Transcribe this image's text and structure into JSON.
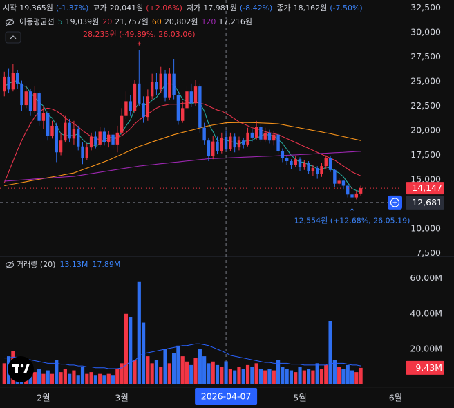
{
  "chart_data": {
    "type": "candlestick",
    "ohlc_legend": [
      {
        "label": "시작",
        "value": "19,365원",
        "change": "(-1.37%)",
        "color": "#3b82f6"
      },
      {
        "label": "고가",
        "value": "20,041원",
        "change": "(+2.06%)",
        "color": "#f23645"
      },
      {
        "label": "저가",
        "value": "17,981원",
        "change": "(-8.42%)",
        "color": "#3b82f6"
      },
      {
        "label": "종가",
        "value": "18,162원",
        "change": "(-7.50%)",
        "color": "#3b82f6"
      }
    ],
    "ma_title": "이동평균선",
    "up_color": "#f23645",
    "down_color": "#2f6ff0",
    "xlim": [
      -1,
      92
    ],
    "xticks": [
      {
        "value": 9,
        "label": "2월"
      },
      {
        "value": 27,
        "label": "3월"
      },
      {
        "value": 68,
        "label": "5월"
      },
      {
        "value": 90,
        "label": "6월"
      }
    ],
    "ylim": [
      7500,
      32500
    ],
    "yticks": [
      {
        "value": 7500,
        "label": "7,500"
      },
      {
        "value": 10000,
        "label": "10,000"
      },
      {
        "value": 15000,
        "label": "15,000"
      },
      {
        "value": 17500,
        "label": "17,500"
      },
      {
        "value": 20000,
        "label": "20,000"
      },
      {
        "value": 22500,
        "label": "22,500"
      },
      {
        "value": 25000,
        "label": "25,000"
      },
      {
        "value": 27500,
        "label": "27,500"
      },
      {
        "value": 30000,
        "label": "30,000"
      },
      {
        "value": 32500,
        "label": "32,500"
      }
    ],
    "y2lim": [
      0,
      72
    ],
    "y2ticks": [
      {
        "value": 20,
        "label": "20.00M"
      },
      {
        "value": 40,
        "label": "40.00M"
      },
      {
        "value": 60,
        "label": "60.00M"
      }
    ],
    "grid": false,
    "open": [
      24000,
      25500,
      24200,
      25900,
      24800,
      22600,
      24000,
      22000,
      23800,
      21000,
      21800,
      19500,
      20500,
      17800,
      19000,
      20800,
      19200,
      20200,
      18400,
      17200,
      18300,
      19400,
      18600,
      19900,
      18800,
      19600,
      18600,
      19800,
      21500,
      23000,
      22000,
      24800,
      22800,
      21400,
      23500,
      25000,
      24200,
      25800,
      23400,
      25800,
      23600,
      21000,
      22300,
      24000,
      22800,
      24500,
      20300,
      19000,
      17400,
      18900,
      17900,
      19365,
      18162,
      19400,
      18300,
      19000,
      18600,
      19800,
      19300,
      20400,
      19100,
      19800,
      19000,
      19600,
      17900,
      17200,
      16900,
      16500,
      17100,
      16300,
      16700,
      15900,
      16200,
      15600,
      16400,
      17200,
      16000,
      14600,
      14900,
      14400,
      13500,
      13200,
      13600
    ],
    "high": [
      26000,
      26300,
      26800,
      26200,
      25100,
      24600,
      24300,
      24500,
      24000,
      22500,
      22000,
      21000,
      20800,
      19800,
      21500,
      21200,
      21000,
      20500,
      18800,
      18700,
      19800,
      19900,
      20400,
      20300,
      20000,
      19900,
      20500,
      22300,
      24000,
      23600,
      25200,
      28235,
      23500,
      24200,
      25800,
      25900,
      26500,
      26200,
      26400,
      27300,
      24000,
      23000,
      24600,
      24800,
      25200,
      24800,
      20800,
      19300,
      19500,
      19400,
      19800,
      20041,
      19800,
      19700,
      19400,
      19300,
      20300,
      20200,
      21000,
      20700,
      20300,
      20100,
      20000,
      19800,
      18200,
      17500,
      17100,
      17400,
      17300,
      17000,
      16900,
      16500,
      16400,
      16700,
      17500,
      17400,
      16100,
      15200,
      15000,
      14500,
      13800,
      13900,
      14400
    ],
    "low": [
      23500,
      23800,
      24000,
      24300,
      22000,
      22300,
      21500,
      21800,
      20500,
      20200,
      19000,
      19200,
      16800,
      17500,
      18800,
      18800,
      18600,
      18000,
      16600,
      17000,
      18000,
      18200,
      18400,
      18500,
      18300,
      18200,
      17800,
      19600,
      21200,
      21500,
      21800,
      22500,
      20800,
      21000,
      23200,
      23600,
      23800,
      23000,
      23100,
      23200,
      20600,
      20800,
      22000,
      22400,
      22500,
      19800,
      18600,
      16900,
      17100,
      17600,
      17700,
      17981,
      17900,
      17800,
      18000,
      18200,
      18400,
      18900,
      19100,
      18800,
      18900,
      18700,
      18500,
      17600,
      16800,
      16500,
      16100,
      16300,
      15900,
      16000,
      15600,
      15400,
      15100,
      15300,
      16100,
      15800,
      14300,
      14400,
      14000,
      13200,
      12554,
      13000,
      13400
    ],
    "close": [
      25500,
      24200,
      25900,
      24800,
      22600,
      24000,
      22000,
      23800,
      21000,
      21800,
      19500,
      20500,
      17800,
      19000,
      20800,
      19200,
      20200,
      18400,
      17200,
      18300,
      19400,
      18600,
      19900,
      18800,
      19600,
      18600,
      19800,
      21500,
      23000,
      22000,
      24800,
      22800,
      21400,
      23500,
      25000,
      24200,
      25800,
      23400,
      25800,
      23600,
      21000,
      22300,
      24000,
      22800,
      24500,
      20300,
      19000,
      17400,
      18900,
      17900,
      19300,
      18162,
      19400,
      18300,
      19000,
      18600,
      19800,
      19300,
      20400,
      19100,
      19800,
      19000,
      19600,
      17900,
      17200,
      16900,
      16500,
      17100,
      16300,
      16700,
      15900,
      16200,
      15600,
      16400,
      17200,
      16000,
      14600,
      14900,
      14400,
      13500,
      13200,
      13600,
      14147
    ],
    "last_close_label": "14,147",
    "ma": [
      {
        "name": "5",
        "color": "#26a69a",
        "legend_label": "19,039원",
        "values": [
          24500,
          24800,
          25000,
          25100,
          24600,
          24500,
          23900,
          23400,
          22900,
          22500,
          21600,
          21300,
          20500,
          19700,
          19500,
          19500,
          19500,
          19700,
          19100,
          18700,
          18700,
          18400,
          18700,
          19100,
          19300,
          19300,
          19300,
          19800,
          20500,
          21100,
          22200,
          22800,
          22600,
          22700,
          23100,
          23400,
          24000,
          24700,
          24800,
          24700,
          24000,
          23200,
          23000,
          22700,
          22900,
          22800,
          22000,
          20700,
          19900,
          19000,
          19100,
          19039,
          18900,
          18800,
          18600,
          18900,
          19000,
          19000,
          19300,
          19400,
          19700,
          19500,
          19500,
          19100,
          18700,
          18100,
          17500,
          17100,
          16800,
          16800,
          16500,
          16400,
          16100,
          16000,
          16300,
          16200,
          15900,
          15700,
          15300,
          14700,
          14100,
          13900,
          13800
        ]
      },
      {
        "name": "20",
        "color": "#e5334b",
        "legend_label": "21,757원",
        "values": [
          14700,
          15800,
          16900,
          18000,
          19000,
          19900,
          20700,
          21400,
          21900,
          22200,
          22300,
          22200,
          22000,
          21700,
          21300,
          21000,
          20700,
          20400,
          20000,
          19700,
          19400,
          19200,
          19100,
          19000,
          19000,
          19100,
          19300,
          19500,
          19800,
          20200,
          20700,
          21100,
          21400,
          21700,
          22000,
          22300,
          22500,
          22600,
          22700,
          22700,
          22700,
          22800,
          22800,
          22900,
          22900,
          22800,
          22700,
          22500,
          22300,
          22100,
          22000,
          21757,
          21500,
          21200,
          20900,
          20700,
          20500,
          20300,
          20200,
          20100,
          19900,
          19800,
          19700,
          19600,
          19400,
          19200,
          19000,
          18800,
          18600,
          18400,
          18200,
          18000,
          17800,
          17600,
          17400,
          17200,
          17000,
          16700,
          16400,
          16100,
          15800,
          15600,
          15400
        ]
      },
      {
        "name": "60",
        "color": "#f7931a",
        "legend_label": "20,802원",
        "values": [
          14400,
          14480,
          14560,
          14640,
          14720,
          14800,
          14890,
          14970,
          15050,
          15130,
          15210,
          15290,
          15370,
          15450,
          15540,
          15620,
          15700,
          15860,
          16030,
          16190,
          16350,
          16510,
          16680,
          16840,
          17000,
          17200,
          17400,
          17600,
          17800,
          18000,
          18200,
          18400,
          18550,
          18700,
          18850,
          19000,
          19150,
          19300,
          19450,
          19600,
          19710,
          19830,
          19940,
          20050,
          20160,
          20280,
          20390,
          20500,
          20580,
          20650,
          20730,
          20802,
          20810,
          20820,
          20830,
          20830,
          20830,
          20820,
          20810,
          20790,
          20770,
          20750,
          20730,
          20700,
          20620,
          20530,
          20450,
          20370,
          20280,
          20200,
          20120,
          20030,
          19950,
          19870,
          19780,
          19700,
          19600,
          19500,
          19400,
          19300,
          19200,
          19100,
          19000
        ]
      },
      {
        "name": "120",
        "color": "#9c27b0",
        "legend_label": "17,216원",
        "values": [
          14860,
          14890,
          14920,
          14950,
          14980,
          15010,
          15040,
          15080,
          15110,
          15140,
          15170,
          15200,
          15230,
          15260,
          15290,
          15320,
          15350,
          15420,
          15490,
          15560,
          15630,
          15700,
          15770,
          15840,
          15910,
          15980,
          16050,
          16120,
          16190,
          16260,
          16330,
          16400,
          16450,
          16500,
          16540,
          16590,
          16640,
          16680,
          16730,
          16780,
          16820,
          16870,
          16920,
          16960,
          17010,
          17060,
          17100,
          17150,
          17170,
          17180,
          17200,
          17216,
          17240,
          17260,
          17280,
          17300,
          17320,
          17340,
          17360,
          17380,
          17400,
          17420,
          17430,
          17450,
          17470,
          17500,
          17520,
          17540,
          17570,
          17590,
          17610,
          17640,
          17660,
          17690,
          17710,
          17730,
          17760,
          17780,
          17800,
          17830,
          17850,
          17880,
          17900
        ]
      }
    ],
    "volume_title": "거래량 (20)",
    "volume_legend": [
      "13.13M",
      "17.89M"
    ],
    "volume_legend_color": "#3b82f6",
    "volume": [
      12,
      16,
      19,
      10,
      14,
      8,
      11,
      7,
      9,
      6,
      8,
      6,
      14,
      7,
      9,
      6,
      8,
      5,
      10,
      6,
      7,
      5,
      6,
      5,
      6,
      5,
      9,
      12,
      40,
      38,
      14,
      58,
      35,
      16,
      12,
      14,
      10,
      20,
      12,
      18,
      22,
      16,
      13,
      11,
      15,
      20,
      16,
      12,
      13,
      11,
      10,
      13.13,
      9,
      8,
      10,
      9,
      11,
      10,
      12,
      9,
      8,
      9,
      8,
      14,
      10,
      9,
      8,
      7,
      10,
      8,
      9,
      8,
      12,
      9,
      11,
      36,
      14,
      10,
      9,
      11,
      8,
      7,
      9.43
    ],
    "last_volume_label": "9.43M",
    "volume_ma": {
      "color": "#2962ff",
      "values": [
        15,
        15,
        15.5,
        15.5,
        15,
        14.5,
        14,
        13.5,
        13,
        12.5,
        12,
        12,
        12,
        11.5,
        11.5,
        11,
        11,
        10.5,
        10.5,
        10,
        10,
        9.5,
        9.5,
        9.5,
        9,
        9,
        9,
        9.5,
        11,
        13,
        13.5,
        16,
        17.5,
        18,
        18.5,
        19,
        19.5,
        20,
        20.5,
        21,
        21.5,
        22,
        22,
        22.5,
        23,
        23,
        22.5,
        22,
        21,
        20,
        19,
        17.89,
        16.5,
        16,
        15.5,
        15,
        14.5,
        14,
        13.5,
        13,
        12.5,
        12.5,
        12,
        12,
        12,
        12,
        11.5,
        11.5,
        11.5,
        11,
        11,
        11,
        11,
        11,
        11,
        12,
        12,
        12,
        12,
        11.5,
        11,
        11,
        10.5
      ]
    },
    "annotations": [
      {
        "text": "28,235원 (-49.89%, 26.03.06)",
        "x": 31,
        "y": 28235,
        "color": "#f23645",
        "side": "above"
      },
      {
        "text": "12,554원 (+12.68%, 26.05.19)",
        "x": 80,
        "y": 12554,
        "color": "#3b82f6",
        "side": "below"
      }
    ],
    "crosshair": {
      "x": 51,
      "x_label": "2026-04-07",
      "y": 12681,
      "y_label": "12,681"
    }
  }
}
